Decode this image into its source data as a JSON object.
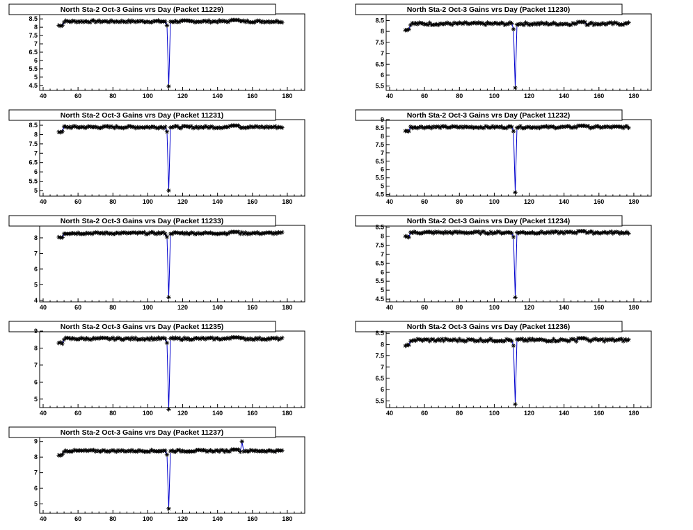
{
  "charts": [
    {
      "title": "North Sta-2 Oct-3 Gains vrs Day (Packet 11229)",
      "ylim": [
        4.2,
        8.8
      ],
      "yticks": [
        4.5,
        5,
        5.5,
        6,
        6.5,
        7,
        7.5,
        8,
        8.5
      ],
      "baseline": 8.35,
      "dip": 4.45
    },
    {
      "title": "North Sta-2 Oct-3 Gains vrs Day (Packet 11230)",
      "ylim": [
        5.3,
        8.8
      ],
      "yticks": [
        5.5,
        6,
        6.5,
        7,
        7.5,
        8,
        8.5
      ],
      "baseline": 8.35,
      "dip": 5.42
    },
    {
      "title": "North Sta-2 Oct-3 Gains vrs Day (Packet 11231)",
      "ylim": [
        4.7,
        8.8
      ],
      "yticks": [
        5,
        5.5,
        6,
        6.5,
        7,
        7.5,
        8,
        8.5
      ],
      "baseline": 8.4,
      "dip": 5.0
    },
    {
      "title": "North Sta-2 Oct-3 Gains vrs Day (Packet 11232)",
      "ylim": [
        4.4,
        9.0
      ],
      "yticks": [
        4.5,
        5,
        5.5,
        6,
        6.5,
        7,
        7.5,
        8,
        8.5,
        9
      ],
      "baseline": 8.55,
      "dip": 4.62
    },
    {
      "title": "North Sta-2 Oct-3 Gains vrs Day (Packet 11233)",
      "ylim": [
        3.9,
        8.8
      ],
      "yticks": [
        4,
        5,
        6,
        7,
        8
      ],
      "baseline": 8.3,
      "dip": 4.2
    },
    {
      "title": "North Sta-2 Oct-3 Gains vrs Day (Packet 11234)",
      "ylim": [
        4.35,
        8.6
      ],
      "yticks": [
        4.5,
        5,
        5.5,
        6,
        6.5,
        7,
        7.5,
        8,
        8.5
      ],
      "baseline": 8.2,
      "dip": 4.6
    },
    {
      "title": "North Sta-2 Oct-3 Gains vrs Day (Packet 11235)",
      "ylim": [
        4.5,
        9.0
      ],
      "yticks": [
        5,
        6,
        7,
        8,
        9
      ],
      "baseline": 8.55,
      "dip": 4.4
    },
    {
      "title": "North Sta-2 Oct-3 Gains vrs Day (Packet 11236)",
      "ylim": [
        5.2,
        8.6
      ],
      "yticks": [
        5.5,
        6,
        6.5,
        7,
        7.5,
        8,
        8.5
      ],
      "baseline": 8.2,
      "dip": 5.35
    },
    {
      "title": "North Sta-2 Oct-3 Gains vrs Day (Packet 11237)",
      "ylim": [
        4.4,
        9.3
      ],
      "yticks": [
        5,
        6,
        7,
        8,
        9
      ],
      "baseline": 8.4,
      "dip": 4.7,
      "outlier": [
        154,
        9.0
      ]
    }
  ],
  "chart_data": {
    "type": "scatter",
    "x_range": [
      38,
      190
    ],
    "xticks": [
      40,
      60,
      80,
      100,
      120,
      140,
      160,
      180
    ],
    "days_start": 49,
    "days_end": 177,
    "dip_day": 112,
    "line_color": "#0000cc",
    "marker": "asterisk"
  }
}
